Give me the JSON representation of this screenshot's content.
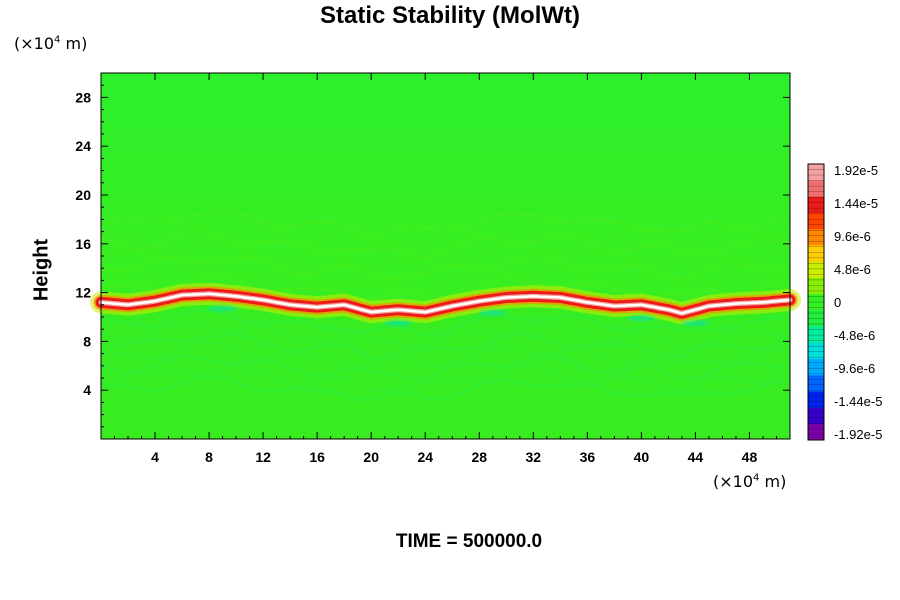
{
  "title": "Static Stability (MolWt)",
  "footer": "TIME = 500000.0",
  "chart_data": {
    "type": "heatmap",
    "title": "Static Stability (MolWt)",
    "xlabel": "",
    "ylabel": "Height",
    "x_unit_prefix": "(×10",
    "x_unit_exp": "4",
    "x_unit_suffix": " m)",
    "y_unit_prefix": "(×10",
    "y_unit_exp": "4",
    "y_unit_suffix": " m)",
    "xlim": [
      0,
      51
    ],
    "ylim": [
      0,
      30
    ],
    "x_ticks": [
      4,
      8,
      12,
      16,
      20,
      24,
      28,
      32,
      36,
      40,
      44,
      48
    ],
    "x_tick_labels": [
      "4",
      "8",
      "12",
      "16",
      "20",
      "24",
      "28",
      "32",
      "36",
      "40",
      "44",
      "48"
    ],
    "y_ticks": [
      4,
      8,
      12,
      16,
      20,
      24,
      28
    ],
    "y_tick_labels": [
      "4",
      "8",
      "12",
      "16",
      "20",
      "24",
      "28"
    ],
    "background_value": 0,
    "tropopause_layer": {
      "x": [
        0,
        2,
        4,
        6,
        8,
        10,
        12,
        14,
        16,
        18,
        20,
        22,
        24,
        26,
        28,
        30,
        32,
        34,
        36,
        38,
        40,
        42,
        43,
        45,
        47,
        49,
        51
      ],
      "height": [
        11.2,
        11.0,
        11.3,
        11.8,
        11.9,
        11.7,
        11.4,
        11.0,
        10.8,
        11.0,
        10.4,
        10.6,
        10.4,
        10.9,
        11.3,
        11.6,
        11.7,
        11.6,
        11.2,
        10.9,
        11.0,
        10.6,
        10.3,
        10.9,
        11.1,
        11.2,
        11.4
      ],
      "peak_value": 1.92e-05
    },
    "colorbar": {
      "min": -1.92e-05,
      "max": 1.92e-05,
      "tick_labels": [
        "1.92e-5",
        "1.44e-5",
        "9.6e-6",
        "4.8e-6",
        "0",
        "-4.8e-6",
        "-9.6e-6",
        "-1.44e-5",
        "-1.92e-5"
      ],
      "colors": [
        "#7a00a8",
        "#3300cc",
        "#0022ee",
        "#0066ff",
        "#00aaff",
        "#00dddd",
        "#00ee99",
        "#22ee44",
        "#33f024",
        "#88f000",
        "#ccee00",
        "#ffcc00",
        "#ff8800",
        "#ff4400",
        "#ee1a1a",
        "#f07070",
        "#f4a0a0"
      ],
      "grid_color": "#33ee22"
    }
  }
}
